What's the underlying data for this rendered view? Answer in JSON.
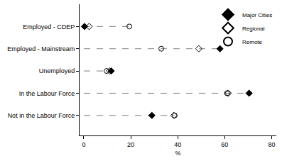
{
  "chart_data": {
    "type": "scatter",
    "orientation": "horizontal",
    "x_label": "%",
    "categories": [
      "Employed - CDEP",
      "Employed - Mainstream",
      "Unemployed",
      "In the Labour Force",
      "Not in the Labour Force"
    ],
    "series": [
      {
        "name": "Major Cities",
        "color": "#000000",
        "marker": "diamond",
        "values": [
          0.3,
          58,
          11.7,
          70.4,
          29
        ]
      },
      {
        "name": "Regional",
        "color": "#000000",
        "marker": "diamond-open",
        "values": [
          2.3,
          49,
          11,
          61.5,
          38.4
        ]
      },
      {
        "name": "Remote",
        "color": "#000000",
        "marker": "circle-open",
        "values": [
          19.4,
          33,
          9.7,
          61,
          38.7
        ]
      }
    ],
    "xlim": [
      -1.8,
      82
    ],
    "xticks": [
      0,
      20,
      40,
      60,
      80
    ],
    "grid": false,
    "legend": "top right",
    "line_style": "dash"
  }
}
